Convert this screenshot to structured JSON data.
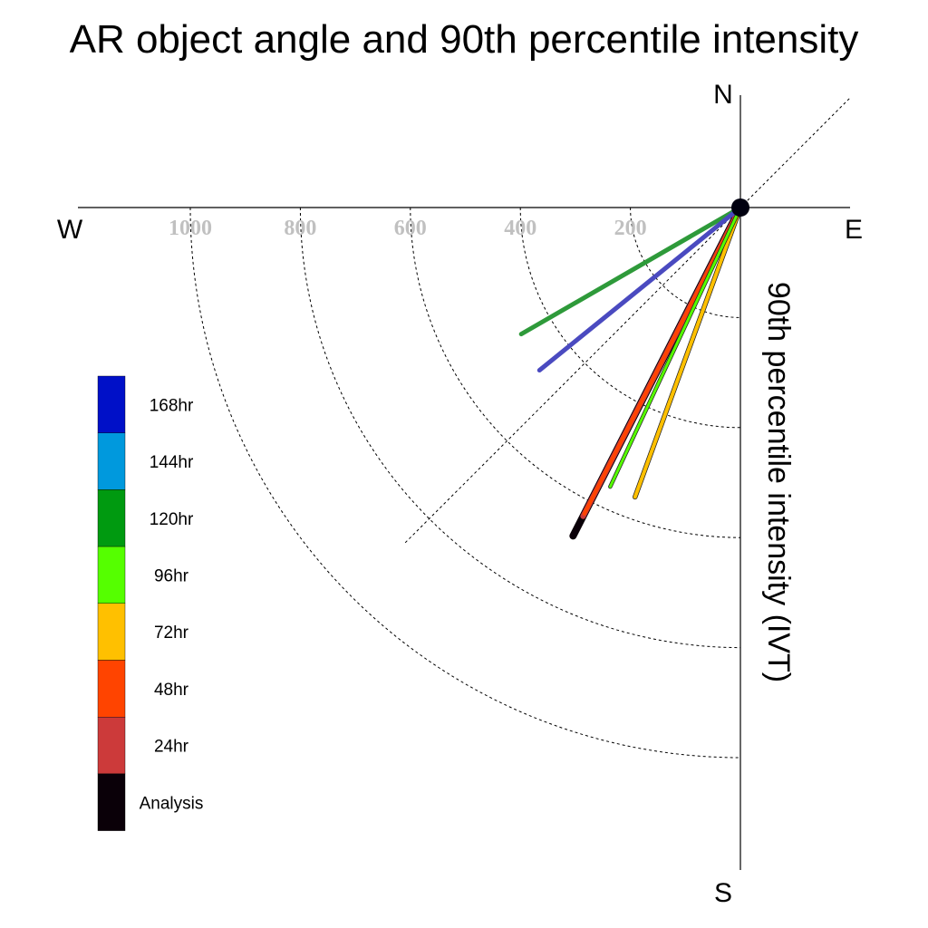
{
  "chart_data": {
    "type": "polar-vector",
    "title": "AR object angle and 90th percentile intensity",
    "radial_label": "90th percentile intensity (IVT)",
    "directions": {
      "north": "N",
      "south": "S",
      "east": "E",
      "west": "W"
    },
    "radial_ticks": [
      200,
      400,
      600,
      800,
      1000
    ],
    "radial_tick_labels": [
      "200",
      "400",
      "600",
      "800",
      "1000"
    ],
    "radial_max": 1200,
    "guide_line_angle_deg": 45,
    "grid": true,
    "legend_position": "left",
    "series": [
      {
        "name": "168hr",
        "color": "#0010c8",
        "line_color": "#4a4ac0",
        "angle_deg": 231,
        "intensity": 470
      },
      {
        "name": "144hr",
        "color": "#0099dd",
        "line_color": "#0099dd",
        "angle_deg": null,
        "intensity": null
      },
      {
        "name": "120hr",
        "color": "#009a10",
        "line_color": "#2e9a3a",
        "angle_deg": 240,
        "intensity": 460
      },
      {
        "name": "96hr",
        "color": "#55ff00",
        "line_color": "#55ff00",
        "angle_deg": 205,
        "intensity": 560
      },
      {
        "name": "72hr",
        "color": "#ffc000",
        "line_color": "#ffc000",
        "angle_deg": 200,
        "intensity": 560
      },
      {
        "name": "48hr",
        "color": "#ff4400",
        "line_color": "#ff4400",
        "angle_deg": 207,
        "intensity": 625
      },
      {
        "name": "24hr",
        "color": "#cc3a3a",
        "line_color": "#cc3a3a",
        "angle_deg": 207,
        "intensity": 630
      },
      {
        "name": "Analysis",
        "color": "#0a0008",
        "line_color": "#0a0008",
        "angle_deg": 207,
        "intensity": 670
      }
    ]
  }
}
